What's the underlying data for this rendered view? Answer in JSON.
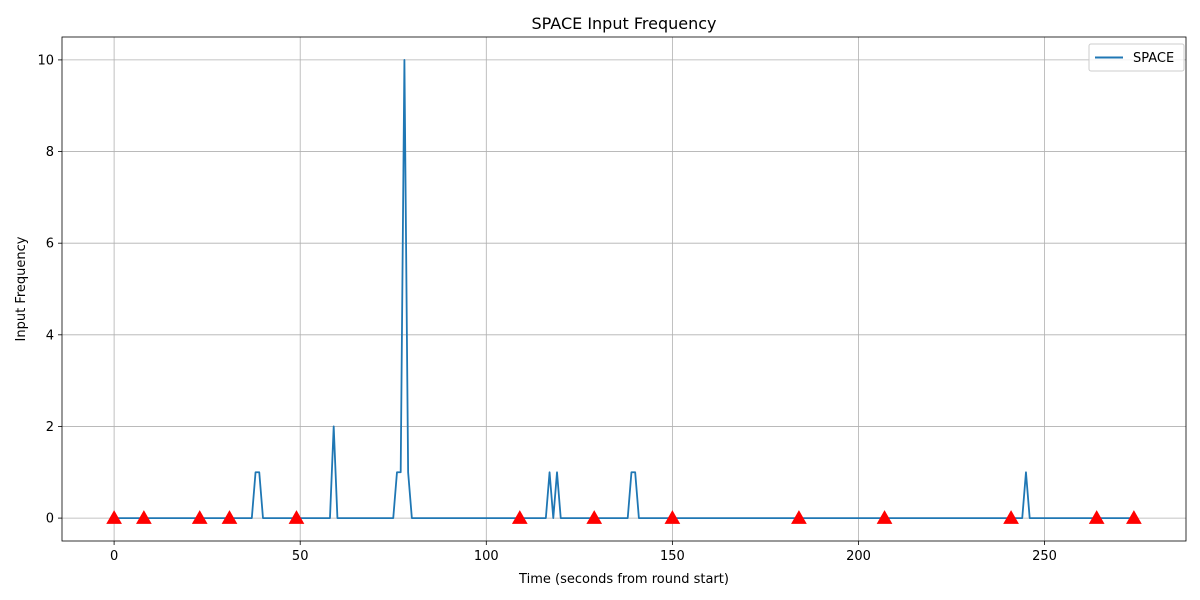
{
  "chart_data": {
    "type": "line",
    "title": "SPACE Input Frequency",
    "xlabel": "Time (seconds from round start)",
    "ylabel": "Input Frequency",
    "xlim": [
      -14,
      288
    ],
    "ylim": [
      -0.5,
      10.5
    ],
    "xticks": [
      0,
      50,
      100,
      150,
      200,
      250
    ],
    "yticks": [
      0,
      2,
      4,
      6,
      8,
      10
    ],
    "grid": true,
    "legend_position": "top-right",
    "series": [
      {
        "name": "SPACE",
        "color": "#1f77b4",
        "points": [
          [
            0,
            0
          ],
          [
            37,
            0
          ],
          [
            38,
            1
          ],
          [
            39,
            1
          ],
          [
            40,
            0
          ],
          [
            58,
            0
          ],
          [
            59,
            2
          ],
          [
            60,
            0
          ],
          [
            75,
            0
          ],
          [
            76,
            1
          ],
          [
            77,
            1
          ],
          [
            78,
            10
          ],
          [
            79,
            1
          ],
          [
            80,
            0
          ],
          [
            116,
            0
          ],
          [
            117,
            1
          ],
          [
            118,
            0
          ],
          [
            119,
            1
          ],
          [
            120,
            0
          ],
          [
            138,
            0
          ],
          [
            139,
            1
          ],
          [
            140,
            1
          ],
          [
            141,
            0
          ],
          [
            244,
            0
          ],
          [
            245,
            1
          ],
          [
            246,
            0
          ],
          [
            274,
            0
          ]
        ]
      }
    ],
    "markers": {
      "shape": "triangle-up",
      "color": "#ff0000",
      "y": 0,
      "x": [
        0,
        8,
        23,
        31,
        49,
        109,
        129,
        150,
        184,
        207,
        241,
        264,
        274
      ]
    }
  }
}
